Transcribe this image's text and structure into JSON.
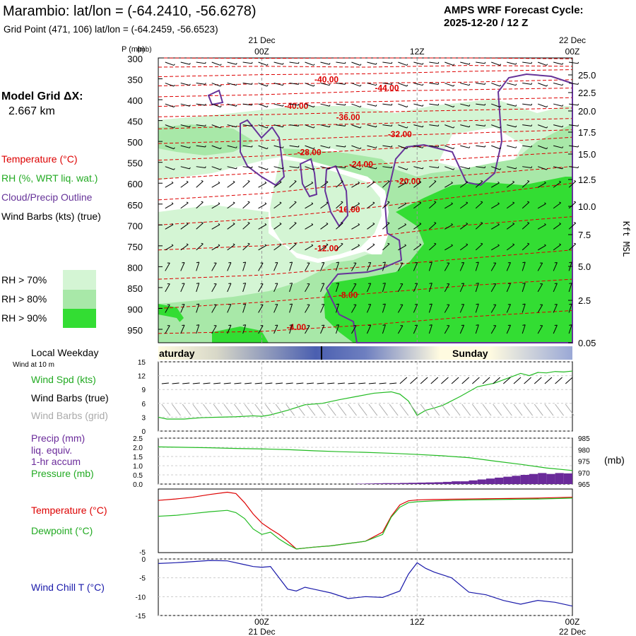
{
  "header": {
    "title": "Marambio:  lat/lon = (-64.2410, -56.6278)",
    "grid_point": "Grid Point (471, 106) lat/lon = (-64.2459, -56.6523)",
    "forecast_title": "AMPS WRF Forecast Cycle:",
    "forecast_cycle": "2025-12-20 / 12  Z",
    "model_grid_label": "Model Grid ΔX:",
    "model_grid_value": "2.667 km"
  },
  "legend": {
    "temperature": "Temperature (°C)",
    "rh": "RH (%, WRT liq. wat.)",
    "cloud": "Cloud/Precip Outline",
    "wind_barbs": "Wind Barbs (kts) (true)",
    "rh70": "RH > 70%",
    "rh80": "RH > 80%",
    "rh90": "RH > 90%",
    "local_weekday": "Local Weekday",
    "wind_at_10m": "Wind at 10 m",
    "day1": "aturday",
    "day2": "Sunday",
    "wind_spd": "Wind Spd (kts)",
    "wind_barbs_true": "Wind Barbs (true)",
    "wind_barbs_grid": "Wind Barbs (grid)",
    "precip1": "Precip (mm)",
    "precip2": "liq. equiv.",
    "precip3": "1-hr accum",
    "pressure": "Pressure (mb)",
    "temp2": "Temperature (°C)",
    "dewpoint": "Dewpoint (°C)",
    "windchill": "Wind Chill T (°C)"
  },
  "colors": {
    "rh70": "#d4f5d4",
    "rh80": "#a8e8a8",
    "rh90": "#33dd33",
    "temperature": "#dd0000",
    "cloud": "#663399",
    "wind": "#000000",
    "wind_grid": "#aaaaaa",
    "speed": "#22bb22",
    "precip": "#6a2a9a",
    "windchill": "#1a1aaa"
  },
  "chart_data": [
    {
      "type": "cross-section",
      "title": "Vertical profile",
      "ylabel": "P (mb)",
      "y2label": "Kft MSL",
      "pressure_ticks": [
        300,
        350,
        400,
        450,
        500,
        550,
        600,
        650,
        700,
        750,
        800,
        850,
        900,
        950
      ],
      "pressure_tick_labels": [
        "300",
        "350",
        "400",
        "450",
        "500",
        "550",
        "600",
        "650",
        "700",
        "750",
        "800",
        "850",
        "900",
        "950"
      ],
      "y2_ticks": [
        "25.0",
        "22.5",
        "20.0",
        "17.5",
        "15.0",
        "12.5",
        "10.0",
        "7.5",
        "5.0",
        "2.5",
        "0.05"
      ],
      "x_range_hours": [
        0,
        48
      ],
      "top_time_labels": [
        {
          "h": 12,
          "day": "21 Dec",
          "time": "00Z"
        },
        {
          "h": 30,
          "day": "",
          "time": "12Z"
        },
        {
          "h": 48,
          "day": "22 Dec",
          "time": "00Z"
        }
      ],
      "bottom_time_labels": [
        {
          "h": 12,
          "day": "21 Dec",
          "time": "00Z"
        },
        {
          "h": 30,
          "day": "",
          "time": "12Z"
        },
        {
          "h": 48,
          "day": "22 Dec",
          "time": "00Z"
        }
      ],
      "p_unit": "(mb)",
      "temperature_contours": [
        {
          "value": "-40.00",
          "label_h": 19.5,
          "label_p": 352
        },
        {
          "value": "-44.00",
          "label_h": 26.5,
          "label_p": 372
        },
        {
          "value": "-40.00",
          "label_h": 16,
          "label_p": 415
        },
        {
          "value": "-36.00",
          "label_h": 22,
          "label_p": 442
        },
        {
          "value": "-32.00",
          "label_h": 28,
          "label_p": 483
        },
        {
          "value": "-28.00",
          "label_h": 17.5,
          "label_p": 526
        },
        {
          "value": "-24.00",
          "label_h": 23.5,
          "label_p": 555
        },
        {
          "value": "-20.00",
          "label_h": 29,
          "label_p": 595
        },
        {
          "value": "-16.00",
          "label_h": 22,
          "label_p": 663
        },
        {
          "value": "-12.00",
          "label_h": 19.5,
          "label_p": 756
        },
        {
          "value": "-8.00",
          "label_h": 22,
          "label_p": 868
        },
        {
          "value": "-4.00",
          "label_h": 16,
          "label_p": 945
        }
      ]
    },
    {
      "type": "line",
      "title": "Wind Spd (kts)",
      "yticks": [
        "15",
        "12",
        "9",
        "6",
        "3",
        "0"
      ],
      "ylim": [
        0,
        15
      ],
      "series": [
        {
          "name": "Wind Spd (kts)",
          "x": [
            0,
            1,
            3,
            5,
            7,
            9,
            11,
            12,
            13,
            15,
            17,
            19,
            21,
            23,
            25,
            27,
            28,
            29,
            30,
            31,
            32,
            33,
            35,
            37,
            39,
            41,
            42,
            43,
            44,
            45,
            46,
            47,
            48
          ],
          "values": [
            3.0,
            2.6,
            2.6,
            2.9,
            3.0,
            3.1,
            3.3,
            3.2,
            3.5,
            4.5,
            5.7,
            6.0,
            6.8,
            7.5,
            8.2,
            8.5,
            8.0,
            6.5,
            3.4,
            4.5,
            5.0,
            5.6,
            7.5,
            9.6,
            10.4,
            11.8,
            12.5,
            12.0,
            12.7,
            12.6,
            12.9,
            12.8,
            13.0
          ]
        }
      ]
    },
    {
      "type": "bar+line",
      "title": "Precip / Pressure",
      "yticks_left": [
        "2.5",
        "2.0",
        "1.5",
        "1.0",
        "0.5",
        "0.0"
      ],
      "yticks_right": [
        "985",
        "980",
        "975",
        "970",
        "965"
      ],
      "pressure_unit": "(mb)",
      "precip_mm": [
        0,
        0,
        0,
        0,
        0,
        0,
        0,
        0,
        0,
        0,
        0,
        0,
        0,
        0,
        0,
        0,
        0,
        0,
        0,
        0,
        0,
        0,
        0,
        0.02,
        0.03,
        0.04,
        0.05,
        0.05,
        0.06,
        0.07,
        0.08,
        0.09,
        0.1,
        0.12,
        0.15,
        0.15,
        0.2,
        0.25,
        0.3,
        0.35,
        0.4,
        0.45,
        0.5,
        0.55,
        0.6,
        0.55,
        0.6,
        0.58
      ],
      "pressure_mb": {
        "x": [
          0,
          3,
          6,
          9,
          12,
          15,
          18,
          21,
          24,
          27,
          30,
          33,
          36,
          39,
          42,
          45,
          48
        ],
        "values": [
          981.2,
          981.0,
          980.8,
          980.5,
          980.3,
          980.0,
          979.5,
          979.1,
          978.8,
          978.4,
          977.9,
          977.3,
          976.5,
          975.0,
          973.6,
          972.0,
          970.9
        ]
      }
    },
    {
      "type": "line",
      "title": "Temperature / Dewpoint",
      "yticks": [
        "-5"
      ],
      "series": [
        {
          "name": "Temperature (°C)",
          "x": [
            0,
            2,
            4,
            6,
            8,
            9,
            10,
            11,
            12,
            13,
            14,
            15,
            16,
            17,
            18,
            20,
            22,
            24,
            26,
            27,
            28,
            29,
            30,
            32,
            36,
            40,
            44,
            48
          ],
          "values": [
            4.5,
            4.8,
            5.2,
            5.8,
            6.3,
            6.0,
            4.0,
            1.5,
            -0.5,
            -1.8,
            -3.0,
            -4.5,
            -6.2,
            -6.0,
            -5.8,
            -5.5,
            -5.0,
            -4.5,
            -2.5,
            1.0,
            3.5,
            4.4,
            4.6,
            4.7,
            4.8,
            4.9,
            5.0,
            5.2
          ]
        },
        {
          "name": "Dewpoint (°C)",
          "x": [
            0,
            2,
            4,
            6,
            8,
            9,
            10,
            11,
            12,
            13,
            14,
            15,
            16,
            17,
            18,
            20,
            22,
            24,
            26,
            27,
            28,
            29,
            30,
            32,
            36,
            40,
            44,
            48
          ],
          "values": [
            1.0,
            1.2,
            1.6,
            2.0,
            2.3,
            1.8,
            0.5,
            -1.8,
            -3.0,
            -2.5,
            -4.0,
            -5.2,
            -6.2,
            -6.0,
            -5.8,
            -5.5,
            -5.0,
            -4.5,
            -3.0,
            0.8,
            3.0,
            4.0,
            4.2,
            4.4,
            4.6,
            4.7,
            4.8,
            5.0
          ]
        }
      ]
    },
    {
      "type": "line",
      "title": "Wind Chill T (°C)",
      "yticks": [
        "0",
        "-5",
        "-10",
        "-15"
      ],
      "ylim": [
        -15,
        0
      ],
      "series": [
        {
          "name": "Wind Chill T (°C)",
          "x": [
            0,
            2,
            4,
            6,
            8,
            10,
            11,
            12,
            13,
            14,
            15,
            16,
            17,
            18,
            20,
            22,
            24,
            26,
            28,
            29,
            30,
            31,
            32,
            34,
            36,
            38,
            40,
            42,
            44,
            46,
            48
          ],
          "values": [
            -1.2,
            -1.0,
            -0.7,
            -0.4,
            -0.5,
            -1.5,
            -2.0,
            -2.2,
            -2.0,
            -5.0,
            -8.0,
            -8.5,
            -7.5,
            -8.0,
            -9.0,
            -10.5,
            -10.0,
            -10.2,
            -8.5,
            -4.0,
            -1.0,
            -2.5,
            -3.5,
            -5.0,
            -8.8,
            -9.5,
            -11.0,
            -12.0,
            -11.0,
            -11.5,
            -12.5
          ]
        }
      ]
    }
  ]
}
